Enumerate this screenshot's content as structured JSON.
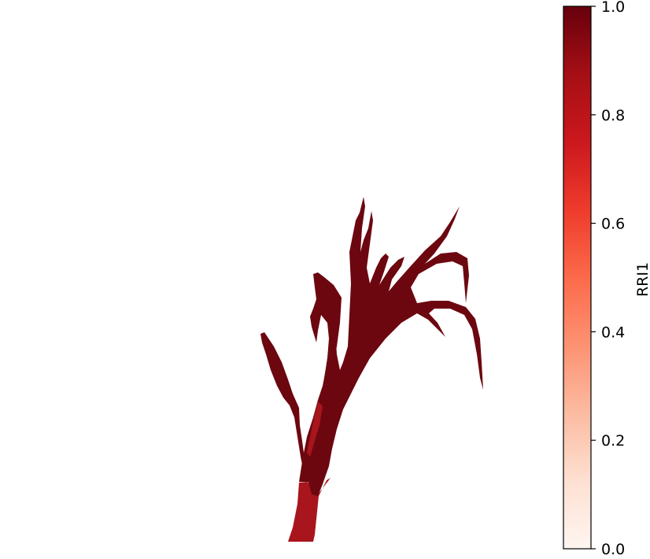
{
  "chart_data": {
    "type": "heatmap",
    "subject": "plant",
    "colormap": "Reds",
    "colorbar": {
      "label": "RRI1",
      "range": [
        0.0,
        1.0
      ],
      "ticks": [
        0.0,
        0.2,
        0.4,
        0.6,
        0.8,
        1.0
      ],
      "tick_labels": [
        "0.0",
        "0.2",
        "0.4",
        "0.6",
        "0.8",
        "1.0"
      ],
      "placement": "right"
    },
    "plant_value": 0.97,
    "stem_value": 0.85,
    "colors": {
      "low": "#fff5f0",
      "high": "#67000d",
      "plant": "#6c0710",
      "stem": "#a8151c"
    }
  }
}
